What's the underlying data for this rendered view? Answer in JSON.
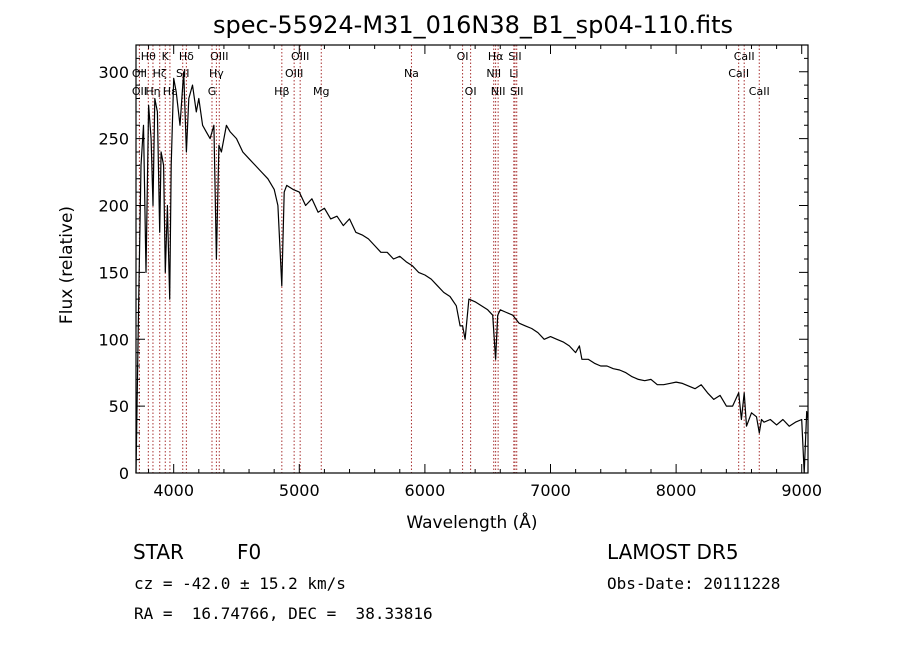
{
  "chart_data": {
    "type": "line",
    "title": "spec-55924-M31_016N38_B1_sp04-110.fits",
    "xlabel": "Wavelength (Å)",
    "ylabel": "Flux (relative)",
    "xlim": [
      3700,
      9050
    ],
    "ylim": [
      0,
      320
    ],
    "xticks": [
      4000,
      5000,
      6000,
      7000,
      8000,
      9000
    ],
    "yticks": [
      0,
      50,
      100,
      150,
      200,
      250,
      300
    ],
    "grid": false,
    "series": [
      {
        "x": [
          3700,
          3720,
          3740,
          3760,
          3780,
          3800,
          3820,
          3835,
          3850,
          3870,
          3889,
          3900,
          3920,
          3933,
          3950,
          3968,
          3980,
          4000,
          4020,
          4050,
          4080,
          4101,
          4120,
          4150,
          4180,
          4200,
          4230,
          4260,
          4290,
          4320,
          4340,
          4360,
          4380,
          4420,
          4450,
          4500,
          4550,
          4600,
          4650,
          4700,
          4750,
          4800,
          4830,
          4861,
          4880,
          4900,
          4950,
          5000,
          5050,
          5100,
          5150,
          5200,
          5250,
          5300,
          5350,
          5400,
          5450,
          5500,
          5550,
          5600,
          5650,
          5700,
          5750,
          5800,
          5850,
          5900,
          5950,
          6000,
          6050,
          6100,
          6150,
          6200,
          6250,
          6280,
          6300,
          6320,
          6350,
          6400,
          6450,
          6500,
          6540,
          6563,
          6580,
          6600,
          6650,
          6700,
          6750,
          6800,
          6850,
          6900,
          6950,
          7000,
          7050,
          7100,
          7150,
          7200,
          7230,
          7250,
          7300,
          7350,
          7400,
          7450,
          7500,
          7550,
          7600,
          7650,
          7700,
          7750,
          7800,
          7850,
          7900,
          7950,
          8000,
          8050,
          8100,
          8150,
          8200,
          8250,
          8300,
          8350,
          8400,
          8450,
          8498,
          8520,
          8542,
          8560,
          8600,
          8640,
          8662,
          8680,
          8700,
          8750,
          8800,
          8850,
          8900,
          8950,
          9000,
          9020,
          9040,
          9050
        ],
        "values": [
          0,
          120,
          230,
          260,
          150,
          275,
          250,
          200,
          280,
          270,
          180,
          240,
          230,
          150,
          200,
          130,
          230,
          295,
          285,
          260,
          300,
          240,
          280,
          290,
          270,
          280,
          260,
          255,
          250,
          260,
          160,
          245,
          240,
          260,
          255,
          250,
          240,
          235,
          230,
          225,
          220,
          212,
          200,
          140,
          210,
          215,
          212,
          210,
          200,
          205,
          195,
          198,
          190,
          192,
          185,
          190,
          180,
          178,
          175,
          170,
          165,
          165,
          160,
          162,
          158,
          155,
          150,
          148,
          145,
          140,
          135,
          132,
          125,
          110,
          110,
          100,
          130,
          128,
          125,
          122,
          118,
          85,
          118,
          122,
          120,
          118,
          112,
          110,
          108,
          105,
          100,
          102,
          100,
          98,
          95,
          90,
          95,
          85,
          85,
          82,
          80,
          80,
          78,
          77,
          75,
          72,
          70,
          69,
          70,
          66,
          66,
          67,
          68,
          67,
          65,
          63,
          66,
          60,
          55,
          58,
          50,
          50,
          60,
          40,
          60,
          35,
          45,
          42,
          30,
          40,
          38,
          40,
          36,
          40,
          35,
          38,
          40,
          0,
          46,
          40
        ]
      }
    ],
    "lines": [
      {
        "name": "Hθ",
        "x": 3798,
        "row": 0
      },
      {
        "name": "OII",
        "x": 3727,
        "row": 1
      },
      {
        "name": "OII",
        "x": 3727,
        "row": 2
      },
      {
        "name": "Hη",
        "x": 3835,
        "row": 2
      },
      {
        "name": "Hζ",
        "x": 3889,
        "row": 1
      },
      {
        "name": "K",
        "x": 3933,
        "row": 0
      },
      {
        "name": "Hε",
        "x": 3970,
        "row": 2
      },
      {
        "name": "Hδ",
        "x": 4101,
        "row": 0
      },
      {
        "name": "SII",
        "x": 4072,
        "row": 1
      },
      {
        "name": "OIII",
        "x": 4363,
        "row": 0
      },
      {
        "name": "Hγ",
        "x": 4340,
        "row": 1
      },
      {
        "name": "G",
        "x": 4305,
        "row": 2
      },
      {
        "name": "Hβ",
        "x": 4861,
        "row": 2
      },
      {
        "name": "OIII",
        "x": 4959,
        "row": 1
      },
      {
        "name": "OIII",
        "x": 5007,
        "row": 0
      },
      {
        "name": "Mg",
        "x": 5175,
        "row": 2
      },
      {
        "name": "Na",
        "x": 5893,
        "row": 1
      },
      {
        "name": "OI",
        "x": 6300,
        "row": 0
      },
      {
        "name": "OI",
        "x": 6364,
        "row": 2
      },
      {
        "name": "NII",
        "x": 6548,
        "row": 1
      },
      {
        "name": "Hα",
        "x": 6563,
        "row": 0
      },
      {
        "name": "NII",
        "x": 6583,
        "row": 2
      },
      {
        "name": "SII",
        "x": 6717,
        "row": 0
      },
      {
        "name": "Li",
        "x": 6708,
        "row": 1
      },
      {
        "name": "SII",
        "x": 6731,
        "row": 2
      },
      {
        "name": "CaII",
        "x": 8498,
        "row": 1
      },
      {
        "name": "CaII",
        "x": 8542,
        "row": 0
      },
      {
        "name": "CaII",
        "x": 8662,
        "row": 2
      }
    ]
  },
  "info": {
    "class_label": "STAR",
    "subclass": "F0",
    "survey": "LAMOST DR5",
    "velocity": "cz = -42.0 ± 15.2 km/s",
    "obs_date": "Obs-Date: 20111228",
    "coords": "RA =  16.74766, DEC =  38.33816"
  },
  "colors": {
    "line_markers": "#a83232",
    "spectrum": "#000000",
    "axes": "#000000"
  }
}
